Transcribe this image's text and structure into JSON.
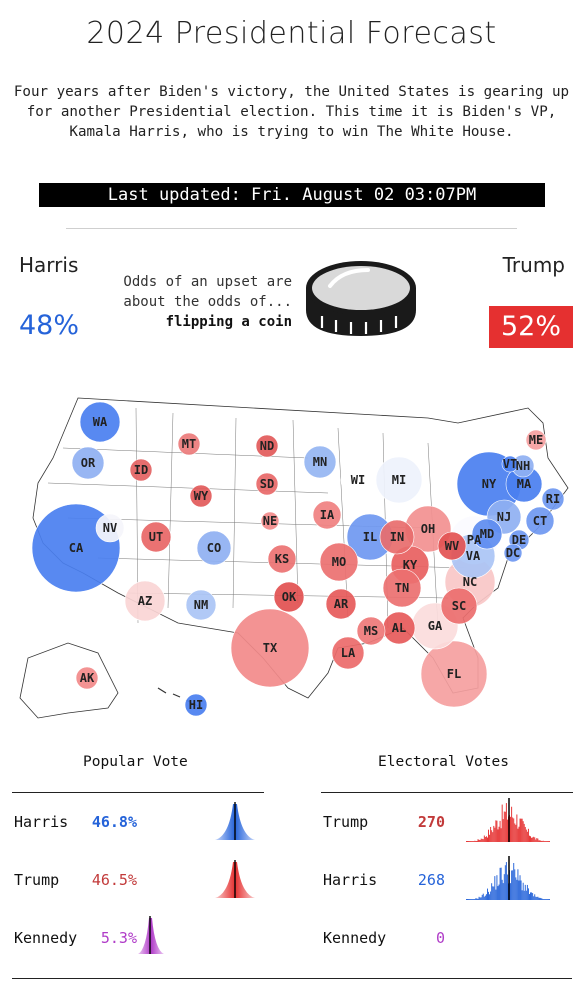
{
  "header": {
    "title": "2024 Presidential Forecast",
    "intro": "Four years after Biden's victory, the United States is gearing up for another Presidential election. This time it is Biden's VP, Kamala Harris, who is trying to win The White House.",
    "last_updated": "Last updated: Fri. August 02 03:07PM"
  },
  "odds": {
    "left_name": "Harris",
    "left_pct": "48%",
    "right_name": "Trump",
    "right_pct": "52%",
    "line1": "Odds of an upset are",
    "line2": "about the odds of...",
    "line3": "flipping a coin",
    "icon": "coin-icon"
  },
  "colors": {
    "harris": "#2563d9",
    "trump": "#e53030",
    "kennedy": "#b03cc8"
  },
  "map_states": [
    {
      "code": "WA",
      "color": "#4a7ff0"
    },
    {
      "code": "OR",
      "color": "#8fb0f2"
    },
    {
      "code": "ID",
      "color": "#e36262"
    },
    {
      "code": "MT",
      "color": "#ec7b7b"
    },
    {
      "code": "ND",
      "color": "#e25a5a"
    },
    {
      "code": "MN",
      "color": "#95b5f2"
    },
    {
      "code": "WI",
      "color": "#ffffff"
    },
    {
      "code": "MI",
      "color": "#eef2fc"
    },
    {
      "code": "SD",
      "color": "#e86868"
    },
    {
      "code": "WY",
      "color": "#e25a5a"
    },
    {
      "code": "NE",
      "color": "#f28a8a"
    },
    {
      "code": "IA",
      "color": "#f08080"
    },
    {
      "code": "NV",
      "color": "#f5f5fb"
    },
    {
      "code": "UT",
      "color": "#e86666"
    },
    {
      "code": "CO",
      "color": "#8fb0f2"
    },
    {
      "code": "CA",
      "color": "#4a7ff0"
    },
    {
      "code": "KS",
      "color": "#ec7272"
    },
    {
      "code": "IL",
      "color": "#6f98f1"
    },
    {
      "code": "IN",
      "color": "#e86c6c"
    },
    {
      "code": "OH",
      "color": "#f29090"
    },
    {
      "code": "PA",
      "color": "#fbfbff"
    },
    {
      "code": "NY",
      "color": "#4a7ff0"
    },
    {
      "code": "VT",
      "color": "#4a7ff0"
    },
    {
      "code": "NH",
      "color": "#8fb0f2"
    },
    {
      "code": "ME",
      "color": "#f5a0a0"
    },
    {
      "code": "MA",
      "color": "#4a7ff0"
    },
    {
      "code": "RI",
      "color": "#6f98f1"
    },
    {
      "code": "CT",
      "color": "#6f98f1"
    },
    {
      "code": "NJ",
      "color": "#8fb0f2"
    },
    {
      "code": "DE",
      "color": "#6f98f1"
    },
    {
      "code": "MD",
      "color": "#5d8cf0"
    },
    {
      "code": "DC",
      "color": "#6f98f1"
    },
    {
      "code": "WV",
      "color": "#e35353"
    },
    {
      "code": "VA",
      "color": "#aac4f5"
    },
    {
      "code": "MO",
      "color": "#ec7070"
    },
    {
      "code": "KY",
      "color": "#e86060"
    },
    {
      "code": "AZ",
      "color": "#fad5d5"
    },
    {
      "code": "NM",
      "color": "#aac4f5"
    },
    {
      "code": "OK",
      "color": "#e25050"
    },
    {
      "code": "TN",
      "color": "#ec7070"
    },
    {
      "code": "NC",
      "color": "#f9c7c7"
    },
    {
      "code": "AR",
      "color": "#e65a5a"
    },
    {
      "code": "SC",
      "color": "#ec6e6e"
    },
    {
      "code": "TX",
      "color": "#f28a8a"
    },
    {
      "code": "MS",
      "color": "#ee7878"
    },
    {
      "code": "AL",
      "color": "#e65a5a"
    },
    {
      "code": "GA",
      "color": "#fbdcdc"
    },
    {
      "code": "LA",
      "color": "#ec6a6a"
    },
    {
      "code": "FL",
      "color": "#f5a0a0"
    },
    {
      "code": "AK",
      "color": "#f28a8a"
    },
    {
      "code": "HI",
      "color": "#4a7ff0"
    }
  ],
  "popular_vote": {
    "title": "Popular Vote",
    "rows": [
      {
        "name": "Harris",
        "value": "46.8%",
        "color": "#2563d9"
      },
      {
        "name": "Trump",
        "value": "46.5%",
        "color": "#e53030"
      },
      {
        "name": "Kennedy",
        "value": "5.3%",
        "color": "#b03cc8"
      }
    ]
  },
  "electoral_votes": {
    "title": "Electoral Votes",
    "rows": [
      {
        "name": "Trump",
        "value": "270",
        "color": "#e53030"
      },
      {
        "name": "Harris",
        "value": "268",
        "color": "#2563d9"
      },
      {
        "name": "Kennedy",
        "value": "0",
        "color": "#b03cc8"
      }
    ]
  }
}
